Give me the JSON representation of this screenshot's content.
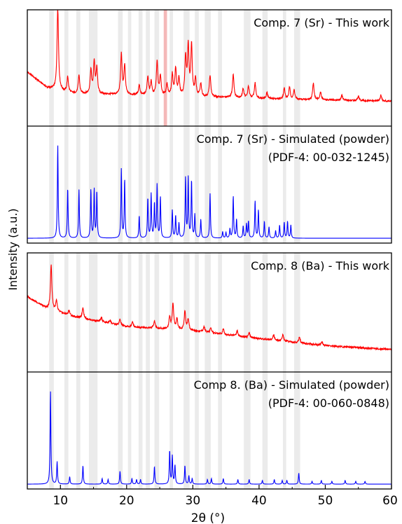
{
  "figure": {
    "xlabel": "2θ (°)",
    "ylabel": "Intensity (a.u.)",
    "xlim": [
      5,
      60
    ],
    "xticks": [
      10,
      20,
      30,
      40,
      50,
      60
    ],
    "shaded_bands_deg": [
      [
        8.3,
        9.0
      ],
      [
        10.6,
        11.2
      ],
      [
        12.4,
        13.0
      ],
      [
        14.3,
        15.6
      ],
      [
        18.7,
        19.4
      ],
      [
        20.2,
        20.7
      ],
      [
        21.8,
        22.4
      ],
      [
        22.9,
        23.5
      ],
      [
        24.2,
        24.9
      ],
      [
        26.5,
        27.0
      ],
      [
        28.6,
        29.5
      ],
      [
        30.3,
        30.9
      ],
      [
        31.8,
        32.7
      ],
      [
        33.8,
        34.4
      ],
      [
        37.7,
        38.7
      ],
      [
        40.5,
        41.3
      ],
      [
        43.6,
        44.1
      ],
      [
        45.3,
        46.2
      ]
    ],
    "highlight_band_deg": [
      25.6,
      26.1
    ],
    "band_color": "#ebebeb",
    "highlight_color": "#f4b8b8",
    "measured_color": "#ff0000",
    "simulated_color": "#0000ff"
  },
  "chart_data": [
    {
      "type": "line",
      "title": "Comp. 7 (Sr) - This work",
      "series_color": "#ff0000",
      "baseline": 0.12,
      "background": [
        [
          5,
          0.4
        ],
        [
          8,
          0.24
        ],
        [
          12,
          0.18
        ],
        [
          30,
          0.15
        ],
        [
          45,
          0.12
        ],
        [
          60,
          0.1
        ]
      ],
      "peaks": [
        [
          9.6,
          1.0
        ],
        [
          11.1,
          0.18
        ],
        [
          12.8,
          0.22
        ],
        [
          14.6,
          0.28
        ],
        [
          15.1,
          0.38
        ],
        [
          15.5,
          0.3
        ],
        [
          19.2,
          0.48
        ],
        [
          19.7,
          0.34
        ],
        [
          21.9,
          0.12
        ],
        [
          23.2,
          0.22
        ],
        [
          23.7,
          0.16
        ],
        [
          24.6,
          0.4
        ],
        [
          25.1,
          0.22
        ],
        [
          26.1,
          0.14
        ],
        [
          26.9,
          0.25
        ],
        [
          27.4,
          0.32
        ],
        [
          27.9,
          0.2
        ],
        [
          28.9,
          0.45
        ],
        [
          29.3,
          0.58
        ],
        [
          29.8,
          0.6
        ],
        [
          30.4,
          0.2
        ],
        [
          31.2,
          0.15
        ],
        [
          32.6,
          0.26
        ],
        [
          36.1,
          0.28
        ],
        [
          37.6,
          0.11
        ],
        [
          38.4,
          0.14
        ],
        [
          39.4,
          0.18
        ],
        [
          41.2,
          0.07
        ],
        [
          43.8,
          0.13
        ],
        [
          44.6,
          0.14
        ],
        [
          45.3,
          0.11
        ],
        [
          48.2,
          0.2
        ],
        [
          49.3,
          0.09
        ],
        [
          52.5,
          0.06
        ],
        [
          55.0,
          0.05
        ],
        [
          58.4,
          0.07
        ]
      ]
    },
    {
      "type": "line",
      "title": "Comp. 7 (Sr) -  Simulated (powder)",
      "subtitle": "(PDF-4: 00-032-1245)",
      "series_color": "#0000ff",
      "baseline": 0.03,
      "background": [
        [
          5,
          0.0
        ],
        [
          60,
          0.0
        ]
      ],
      "peaks": [
        [
          9.6,
          1.0
        ],
        [
          11.1,
          0.54
        ],
        [
          12.8,
          0.52
        ],
        [
          14.6,
          0.52
        ],
        [
          15.1,
          0.52
        ],
        [
          15.5,
          0.5
        ],
        [
          19.2,
          0.74
        ],
        [
          19.7,
          0.63
        ],
        [
          21.9,
          0.24
        ],
        [
          23.2,
          0.43
        ],
        [
          23.7,
          0.47
        ],
        [
          24.2,
          0.37
        ],
        [
          24.6,
          0.57
        ],
        [
          25.1,
          0.44
        ],
        [
          26.9,
          0.3
        ],
        [
          27.4,
          0.24
        ],
        [
          27.9,
          0.16
        ],
        [
          28.9,
          0.65
        ],
        [
          29.3,
          0.64
        ],
        [
          29.8,
          0.62
        ],
        [
          30.3,
          0.25
        ],
        [
          31.2,
          0.2
        ],
        [
          32.6,
          0.48
        ],
        [
          34.5,
          0.07
        ],
        [
          35.0,
          0.06
        ],
        [
          35.6,
          0.1
        ],
        [
          36.1,
          0.45
        ],
        [
          36.6,
          0.2
        ],
        [
          37.6,
          0.13
        ],
        [
          38.1,
          0.15
        ],
        [
          38.4,
          0.18
        ],
        [
          39.4,
          0.4
        ],
        [
          39.9,
          0.3
        ],
        [
          40.8,
          0.18
        ],
        [
          41.5,
          0.12
        ],
        [
          42.5,
          0.08
        ],
        [
          43.1,
          0.14
        ],
        [
          43.8,
          0.17
        ],
        [
          44.3,
          0.18
        ],
        [
          44.8,
          0.14
        ]
      ]
    },
    {
      "type": "line",
      "title": "Comp. 8 (Ba) -  This work",
      "series_color": "#ff0000",
      "baseline": 0.12,
      "background": [
        [
          5,
          0.6
        ],
        [
          8,
          0.48
        ],
        [
          12,
          0.4
        ],
        [
          20,
          0.3
        ],
        [
          30,
          0.26
        ],
        [
          40,
          0.18
        ],
        [
          50,
          0.11
        ],
        [
          60,
          0.07
        ]
      ],
      "peaks": [
        [
          8.6,
          0.52
        ],
        [
          9.4,
          0.12
        ],
        [
          11.3,
          0.06
        ],
        [
          13.4,
          0.13
        ],
        [
          16.2,
          0.05
        ],
        [
          17.5,
          0.04
        ],
        [
          19.0,
          0.07
        ],
        [
          20.9,
          0.06
        ],
        [
          24.2,
          0.09
        ],
        [
          26.5,
          0.14
        ],
        [
          27.0,
          0.3
        ],
        [
          27.6,
          0.12
        ],
        [
          28.8,
          0.22
        ],
        [
          29.3,
          0.13
        ],
        [
          31.7,
          0.06
        ],
        [
          32.7,
          0.05
        ],
        [
          34.6,
          0.06
        ],
        [
          36.7,
          0.06
        ],
        [
          38.5,
          0.05
        ],
        [
          42.2,
          0.06
        ],
        [
          43.6,
          0.08
        ],
        [
          46.1,
          0.07
        ],
        [
          49.5,
          0.04
        ]
      ]
    },
    {
      "type": "line",
      "title": "Comp 8. (Ba) - Simulated (powder)",
      "subtitle": "(PDF-4: 00-060-0848)",
      "series_color": "#0000ff",
      "baseline": 0.03,
      "background": [
        [
          5,
          0.0
        ],
        [
          60,
          0.0
        ]
      ],
      "peaks": [
        [
          8.5,
          1.0
        ],
        [
          9.5,
          0.24
        ],
        [
          11.4,
          0.08
        ],
        [
          13.4,
          0.2
        ],
        [
          16.3,
          0.06
        ],
        [
          17.2,
          0.05
        ],
        [
          19.0,
          0.14
        ],
        [
          20.8,
          0.06
        ],
        [
          21.5,
          0.05
        ],
        [
          22.1,
          0.05
        ],
        [
          24.2,
          0.19
        ],
        [
          26.5,
          0.36
        ],
        [
          26.9,
          0.3
        ],
        [
          27.3,
          0.2
        ],
        [
          28.8,
          0.2
        ],
        [
          29.4,
          0.09
        ],
        [
          29.9,
          0.06
        ],
        [
          32.2,
          0.05
        ],
        [
          32.8,
          0.06
        ],
        [
          34.6,
          0.06
        ],
        [
          36.8,
          0.05
        ],
        [
          38.5,
          0.05
        ],
        [
          40.5,
          0.04
        ],
        [
          42.3,
          0.05
        ],
        [
          43.5,
          0.04
        ],
        [
          44.2,
          0.04
        ],
        [
          46.0,
          0.12
        ],
        [
          48.0,
          0.03
        ],
        [
          49.4,
          0.04
        ],
        [
          51.0,
          0.03
        ],
        [
          53.0,
          0.04
        ],
        [
          54.6,
          0.03
        ],
        [
          56.0,
          0.03
        ]
      ]
    }
  ]
}
